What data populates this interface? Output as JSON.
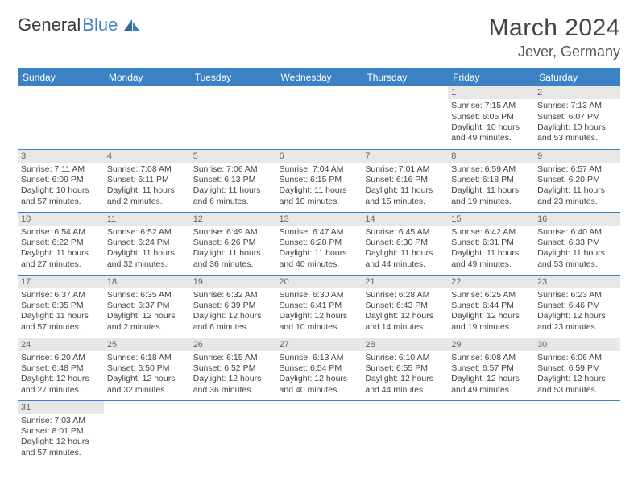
{
  "brand": {
    "part1": "General",
    "part2": "Blue"
  },
  "title": "March 2024",
  "location": "Jever, Germany",
  "colors": {
    "header_bg": "#3b82c4",
    "header_fg": "#ffffff",
    "daynum_bg": "#e7e7e7",
    "row_divider": "#3b82c4",
    "text": "#444444"
  },
  "weekdays": [
    "Sunday",
    "Monday",
    "Tuesday",
    "Wednesday",
    "Thursday",
    "Friday",
    "Saturday"
  ],
  "weeks": [
    [
      null,
      null,
      null,
      null,
      null,
      {
        "n": "1",
        "sr": "Sunrise: 7:15 AM",
        "ss": "Sunset: 6:05 PM",
        "dl": "Daylight: 10 hours and 49 minutes."
      },
      {
        "n": "2",
        "sr": "Sunrise: 7:13 AM",
        "ss": "Sunset: 6:07 PM",
        "dl": "Daylight: 10 hours and 53 minutes."
      }
    ],
    [
      {
        "n": "3",
        "sr": "Sunrise: 7:11 AM",
        "ss": "Sunset: 6:09 PM",
        "dl": "Daylight: 10 hours and 57 minutes."
      },
      {
        "n": "4",
        "sr": "Sunrise: 7:08 AM",
        "ss": "Sunset: 6:11 PM",
        "dl": "Daylight: 11 hours and 2 minutes."
      },
      {
        "n": "5",
        "sr": "Sunrise: 7:06 AM",
        "ss": "Sunset: 6:13 PM",
        "dl": "Daylight: 11 hours and 6 minutes."
      },
      {
        "n": "6",
        "sr": "Sunrise: 7:04 AM",
        "ss": "Sunset: 6:15 PM",
        "dl": "Daylight: 11 hours and 10 minutes."
      },
      {
        "n": "7",
        "sr": "Sunrise: 7:01 AM",
        "ss": "Sunset: 6:16 PM",
        "dl": "Daylight: 11 hours and 15 minutes."
      },
      {
        "n": "8",
        "sr": "Sunrise: 6:59 AM",
        "ss": "Sunset: 6:18 PM",
        "dl": "Daylight: 11 hours and 19 minutes."
      },
      {
        "n": "9",
        "sr": "Sunrise: 6:57 AM",
        "ss": "Sunset: 6:20 PM",
        "dl": "Daylight: 11 hours and 23 minutes."
      }
    ],
    [
      {
        "n": "10",
        "sr": "Sunrise: 6:54 AM",
        "ss": "Sunset: 6:22 PM",
        "dl": "Daylight: 11 hours and 27 minutes."
      },
      {
        "n": "11",
        "sr": "Sunrise: 6:52 AM",
        "ss": "Sunset: 6:24 PM",
        "dl": "Daylight: 11 hours and 32 minutes."
      },
      {
        "n": "12",
        "sr": "Sunrise: 6:49 AM",
        "ss": "Sunset: 6:26 PM",
        "dl": "Daylight: 11 hours and 36 minutes."
      },
      {
        "n": "13",
        "sr": "Sunrise: 6:47 AM",
        "ss": "Sunset: 6:28 PM",
        "dl": "Daylight: 11 hours and 40 minutes."
      },
      {
        "n": "14",
        "sr": "Sunrise: 6:45 AM",
        "ss": "Sunset: 6:30 PM",
        "dl": "Daylight: 11 hours and 44 minutes."
      },
      {
        "n": "15",
        "sr": "Sunrise: 6:42 AM",
        "ss": "Sunset: 6:31 PM",
        "dl": "Daylight: 11 hours and 49 minutes."
      },
      {
        "n": "16",
        "sr": "Sunrise: 6:40 AM",
        "ss": "Sunset: 6:33 PM",
        "dl": "Daylight: 11 hours and 53 minutes."
      }
    ],
    [
      {
        "n": "17",
        "sr": "Sunrise: 6:37 AM",
        "ss": "Sunset: 6:35 PM",
        "dl": "Daylight: 11 hours and 57 minutes."
      },
      {
        "n": "18",
        "sr": "Sunrise: 6:35 AM",
        "ss": "Sunset: 6:37 PM",
        "dl": "Daylight: 12 hours and 2 minutes."
      },
      {
        "n": "19",
        "sr": "Sunrise: 6:32 AM",
        "ss": "Sunset: 6:39 PM",
        "dl": "Daylight: 12 hours and 6 minutes."
      },
      {
        "n": "20",
        "sr": "Sunrise: 6:30 AM",
        "ss": "Sunset: 6:41 PM",
        "dl": "Daylight: 12 hours and 10 minutes."
      },
      {
        "n": "21",
        "sr": "Sunrise: 6:28 AM",
        "ss": "Sunset: 6:43 PM",
        "dl": "Daylight: 12 hours and 14 minutes."
      },
      {
        "n": "22",
        "sr": "Sunrise: 6:25 AM",
        "ss": "Sunset: 6:44 PM",
        "dl": "Daylight: 12 hours and 19 minutes."
      },
      {
        "n": "23",
        "sr": "Sunrise: 6:23 AM",
        "ss": "Sunset: 6:46 PM",
        "dl": "Daylight: 12 hours and 23 minutes."
      }
    ],
    [
      {
        "n": "24",
        "sr": "Sunrise: 6:20 AM",
        "ss": "Sunset: 6:48 PM",
        "dl": "Daylight: 12 hours and 27 minutes."
      },
      {
        "n": "25",
        "sr": "Sunrise: 6:18 AM",
        "ss": "Sunset: 6:50 PM",
        "dl": "Daylight: 12 hours and 32 minutes."
      },
      {
        "n": "26",
        "sr": "Sunrise: 6:15 AM",
        "ss": "Sunset: 6:52 PM",
        "dl": "Daylight: 12 hours and 36 minutes."
      },
      {
        "n": "27",
        "sr": "Sunrise: 6:13 AM",
        "ss": "Sunset: 6:54 PM",
        "dl": "Daylight: 12 hours and 40 minutes."
      },
      {
        "n": "28",
        "sr": "Sunrise: 6:10 AM",
        "ss": "Sunset: 6:55 PM",
        "dl": "Daylight: 12 hours and 44 minutes."
      },
      {
        "n": "29",
        "sr": "Sunrise: 6:08 AM",
        "ss": "Sunset: 6:57 PM",
        "dl": "Daylight: 12 hours and 49 minutes."
      },
      {
        "n": "30",
        "sr": "Sunrise: 6:06 AM",
        "ss": "Sunset: 6:59 PM",
        "dl": "Daylight: 12 hours and 53 minutes."
      }
    ],
    [
      {
        "n": "31",
        "sr": "Sunrise: 7:03 AM",
        "ss": "Sunset: 8:01 PM",
        "dl": "Daylight: 12 hours and 57 minutes."
      },
      null,
      null,
      null,
      null,
      null,
      null
    ]
  ]
}
